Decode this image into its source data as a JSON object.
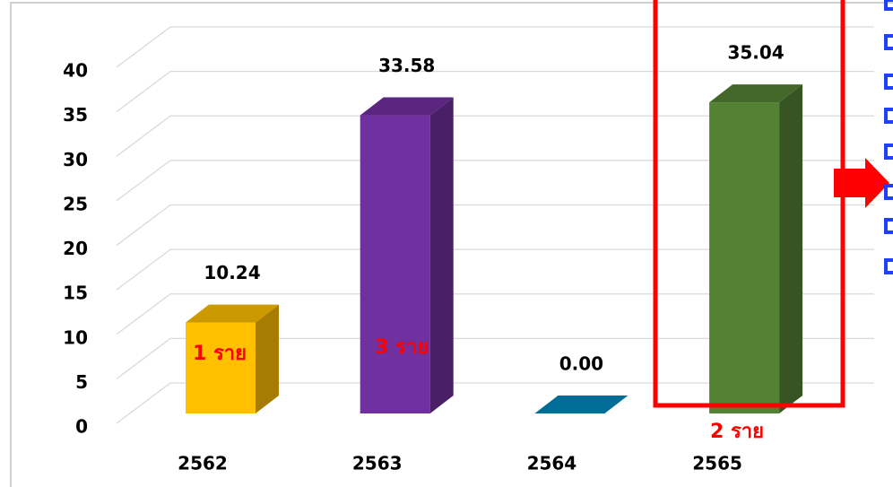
{
  "chart_data": {
    "type": "bar3d",
    "categories": [
      "2562",
      "2563",
      "2564",
      "2565"
    ],
    "values": [
      10.24,
      33.58,
      0.0,
      35.04
    ],
    "value_labels": [
      "10.24",
      "33.58",
      "0.00",
      "35.04"
    ],
    "colors": [
      "#FFC000",
      "#7030A0",
      "#0088BB",
      "#548235"
    ],
    "ylim": [
      0,
      40
    ],
    "yticks": [
      0,
      5,
      10,
      15,
      20,
      25,
      30,
      35,
      40
    ],
    "grid": true,
    "annotations": [
      "1 ราย",
      "3 ราย",
      "2 ราย"
    ]
  }
}
